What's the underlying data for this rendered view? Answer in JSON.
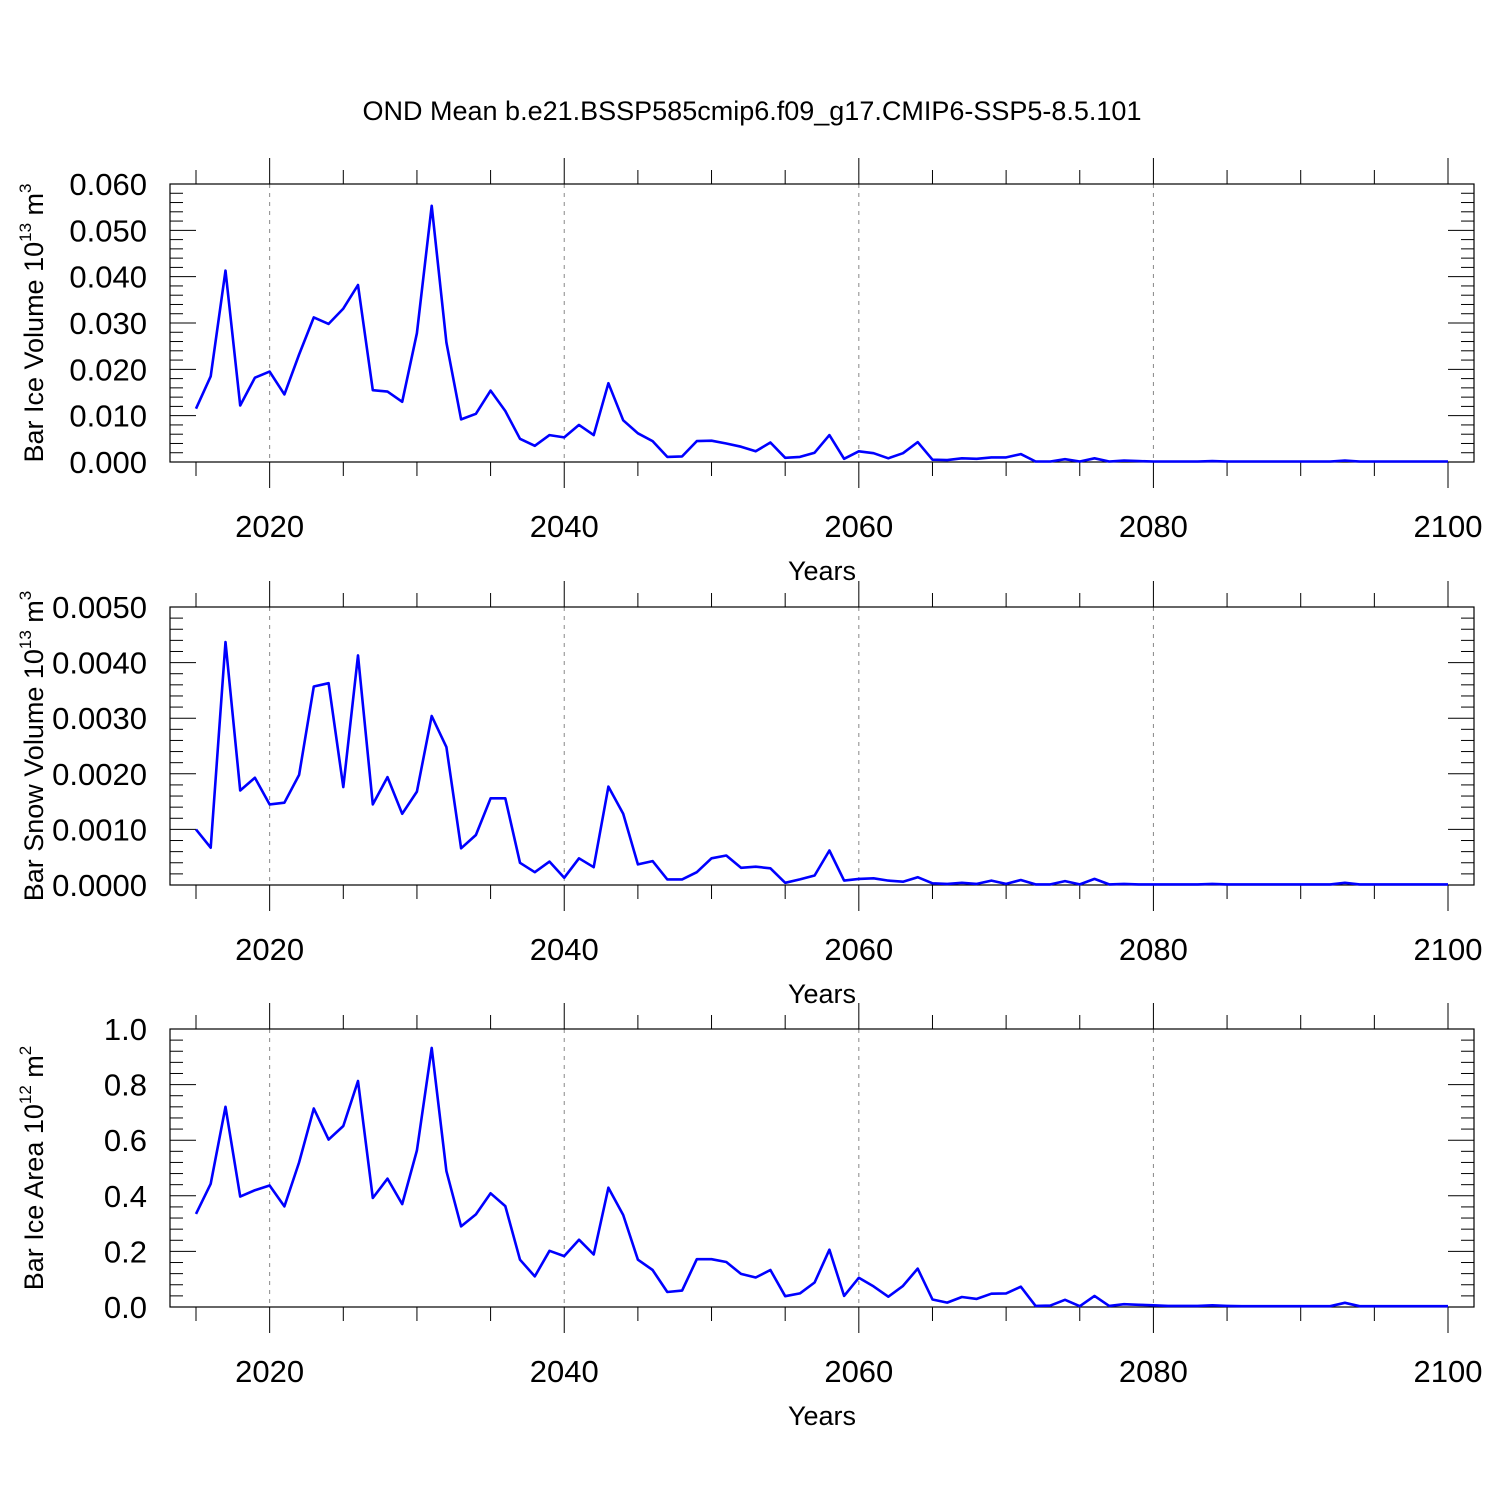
{
  "title": "OND Mean b.e21.BSSP585cmip6.f09_g17.CMIP6-SSP5-8.5.101",
  "chart_data": [
    {
      "type": "line",
      "xlabel": "Years",
      "ylabel": {
        "text": "Bar Ice Volume 10",
        "exp": "13",
        "unit": " m",
        "unit_exp": "3"
      },
      "xlim": [
        2015,
        2100
      ],
      "ylim": [
        0,
        0.06
      ],
      "x_ticks": [
        "2020",
        "2040",
        "2060",
        "2080",
        "2100"
      ],
      "y_ticks": [
        "0.000",
        "0.010",
        "0.020",
        "0.030",
        "0.040",
        "0.050",
        "0.060"
      ],
      "grid": "vertical dashed at major x ticks",
      "color": "#0000ff",
      "x": [
        2015,
        2016,
        2017,
        2018,
        2019,
        2020,
        2021,
        2022,
        2023,
        2024,
        2025,
        2026,
        2027,
        2028,
        2029,
        2030,
        2031,
        2032,
        2033,
        2034,
        2035,
        2036,
        2037,
        2038,
        2039,
        2040,
        2041,
        2042,
        2043,
        2044,
        2045,
        2046,
        2047,
        2048,
        2049,
        2050,
        2051,
        2052,
        2053,
        2054,
        2055,
        2056,
        2057,
        2058,
        2059,
        2060,
        2061,
        2062,
        2063,
        2064,
        2065,
        2066,
        2067,
        2068,
        2069,
        2070,
        2071,
        2072,
        2073,
        2074,
        2075,
        2076,
        2077,
        2078,
        2079,
        2080,
        2081,
        2082,
        2083,
        2084,
        2085,
        2086,
        2087,
        2088,
        2089,
        2090,
        2091,
        2092,
        2093,
        2094,
        2095,
        2096,
        2097,
        2098,
        2099,
        2100
      ],
      "values": [
        0.0115,
        0.0185,
        0.0413,
        0.0122,
        0.0182,
        0.0195,
        0.0146,
        0.0232,
        0.0312,
        0.0298,
        0.0331,
        0.0382,
        0.0155,
        0.0152,
        0.013,
        0.0278,
        0.0553,
        0.0258,
        0.0092,
        0.0104,
        0.0154,
        0.011,
        0.005,
        0.0035,
        0.0058,
        0.0053,
        0.008,
        0.0058,
        0.017,
        0.009,
        0.0062,
        0.0045,
        0.0011,
        0.0012,
        0.0045,
        0.0046,
        0.004,
        0.0033,
        0.0023,
        0.0042,
        0.0009,
        0.0011,
        0.002,
        0.0058,
        0.0007,
        0.0023,
        0.0019,
        0.0008,
        0.0019,
        0.0043,
        0.0005,
        0.0004,
        0.0008,
        0.0007,
        0.001,
        0.001,
        0.0017,
        0.0001,
        0.0001,
        0.0006,
        0.0001,
        0.0008,
        0.0001,
        0.0003,
        0.0002,
        0.0001,
        0.0001,
        0.0001,
        0.0001,
        0.0002,
        0.0001,
        0.0001,
        0.0001,
        0.0001,
        0.0001,
        0.0001,
        0.0001,
        0.0001,
        0.0003,
        0.0001,
        0.0001,
        0.0001,
        0.0001,
        0.0001,
        0.0001,
        0.0001
      ]
    },
    {
      "type": "line",
      "xlabel": "Years",
      "ylabel": {
        "text": "Bar Snow Volume 10",
        "exp": "13",
        "unit": " m",
        "unit_exp": "3"
      },
      "xlim": [
        2015,
        2100
      ],
      "ylim": [
        0,
        0.005
      ],
      "x_ticks": [
        "2020",
        "2040",
        "2060",
        "2080",
        "2100"
      ],
      "y_ticks": [
        "0.0000",
        "0.0010",
        "0.0020",
        "0.0030",
        "0.0040",
        "0.0050"
      ],
      "grid": "vertical dashed at major x ticks",
      "color": "#0000ff",
      "x": [
        2015,
        2016,
        2017,
        2018,
        2019,
        2020,
        2021,
        2022,
        2023,
        2024,
        2025,
        2026,
        2027,
        2028,
        2029,
        2030,
        2031,
        2032,
        2033,
        2034,
        2035,
        2036,
        2037,
        2038,
        2039,
        2040,
        2041,
        2042,
        2043,
        2044,
        2045,
        2046,
        2047,
        2048,
        2049,
        2050,
        2051,
        2052,
        2053,
        2054,
        2055,
        2056,
        2057,
        2058,
        2059,
        2060,
        2061,
        2062,
        2063,
        2064,
        2065,
        2066,
        2067,
        2068,
        2069,
        2070,
        2071,
        2072,
        2073,
        2074,
        2075,
        2076,
        2077,
        2078,
        2079,
        2080,
        2081,
        2082,
        2083,
        2084,
        2085,
        2086,
        2087,
        2088,
        2089,
        2090,
        2091,
        2092,
        2093,
        2094,
        2095,
        2096,
        2097,
        2098,
        2099,
        2100
      ],
      "values": [
        0.001,
        0.00067,
        0.00437,
        0.0017,
        0.00193,
        0.00145,
        0.00148,
        0.00198,
        0.00357,
        0.00363,
        0.00176,
        0.00413,
        0.00145,
        0.00194,
        0.00128,
        0.00168,
        0.00304,
        0.00248,
        0.00066,
        0.0009,
        0.00156,
        0.00156,
        0.0004,
        0.00023,
        0.00042,
        0.00013,
        0.00048,
        0.00032,
        0.00177,
        0.00128,
        0.00037,
        0.00043,
        0.0001,
        0.0001,
        0.00023,
        0.00048,
        0.00053,
        0.00031,
        0.00033,
        0.0003,
        4e-05,
        0.0001,
        0.00017,
        0.00062,
        8e-05,
        0.00011,
        0.00012,
        8e-05,
        6e-05,
        0.00014,
        3e-05,
        2e-05,
        4e-05,
        2e-05,
        8e-05,
        2e-05,
        9e-05,
        1e-05,
        1e-05,
        7e-05,
        1e-05,
        0.00011,
        1e-05,
        2e-05,
        1e-05,
        1e-05,
        1e-05,
        1e-05,
        1e-05,
        2e-05,
        1e-05,
        1e-05,
        1e-05,
        1e-05,
        1e-05,
        1e-05,
        1e-05,
        1e-05,
        4e-05,
        1e-05,
        1e-05,
        1e-05,
        1e-05,
        1e-05,
        1e-05,
        1e-05
      ]
    },
    {
      "type": "line",
      "xlabel": "Years",
      "ylabel": {
        "text": "Bar Ice Area 10",
        "exp": "12",
        "unit": " m",
        "unit_exp": "2"
      },
      "xlim": [
        2015,
        2100
      ],
      "ylim": [
        0,
        1.0
      ],
      "x_ticks": [
        "2020",
        "2040",
        "2060",
        "2080",
        "2100"
      ],
      "y_ticks": [
        "0.0",
        "0.2",
        "0.4",
        "0.6",
        "0.8",
        "1.0"
      ],
      "grid": "vertical dashed at major x ticks",
      "color": "#0000ff",
      "x": [
        2015,
        2016,
        2017,
        2018,
        2019,
        2020,
        2021,
        2022,
        2023,
        2024,
        2025,
        2026,
        2027,
        2028,
        2029,
        2030,
        2031,
        2032,
        2033,
        2034,
        2035,
        2036,
        2037,
        2038,
        2039,
        2040,
        2041,
        2042,
        2043,
        2044,
        2045,
        2046,
        2047,
        2048,
        2049,
        2050,
        2051,
        2052,
        2053,
        2054,
        2055,
        2056,
        2057,
        2058,
        2059,
        2060,
        2061,
        2062,
        2063,
        2064,
        2065,
        2066,
        2067,
        2068,
        2069,
        2070,
        2071,
        2072,
        2073,
        2074,
        2075,
        2076,
        2077,
        2078,
        2079,
        2080,
        2081,
        2082,
        2083,
        2084,
        2085,
        2086,
        2087,
        2088,
        2089,
        2090,
        2091,
        2092,
        2093,
        2094,
        2095,
        2096,
        2097,
        2098,
        2099,
        2100
      ],
      "values": [
        0.335,
        0.443,
        0.72,
        0.397,
        0.42,
        0.437,
        0.362,
        0.52,
        0.714,
        0.602,
        0.651,
        0.813,
        0.392,
        0.462,
        0.37,
        0.563,
        0.932,
        0.489,
        0.29,
        0.333,
        0.409,
        0.363,
        0.17,
        0.11,
        0.202,
        0.183,
        0.242,
        0.189,
        0.429,
        0.331,
        0.17,
        0.133,
        0.054,
        0.059,
        0.172,
        0.172,
        0.162,
        0.119,
        0.106,
        0.133,
        0.039,
        0.049,
        0.088,
        0.206,
        0.04,
        0.105,
        0.074,
        0.037,
        0.076,
        0.138,
        0.027,
        0.016,
        0.036,
        0.029,
        0.048,
        0.049,
        0.073,
        0.004,
        0.005,
        0.026,
        0.003,
        0.04,
        0.004,
        0.01,
        0.008,
        0.006,
        0.004,
        0.004,
        0.004,
        0.006,
        0.004,
        0.003,
        0.003,
        0.003,
        0.003,
        0.003,
        0.003,
        0.003,
        0.015,
        0.003,
        0.003,
        0.003,
        0.003,
        0.003,
        0.003,
        0.003
      ]
    }
  ]
}
